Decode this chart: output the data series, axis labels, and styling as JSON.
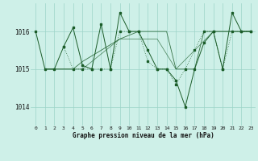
{
  "title": "Graphe pression niveau de la mer (hPa)",
  "background_color": "#cef0e8",
  "grid_color": "#9dd4c8",
  "line_color": "#1a5c28",
  "ylim": [
    1013.5,
    1016.75
  ],
  "xlim": [
    -0.5,
    23.5
  ],
  "yticks": [
    1014,
    1015,
    1016
  ],
  "xticks": [
    0,
    1,
    2,
    3,
    4,
    5,
    6,
    7,
    8,
    9,
    10,
    11,
    12,
    13,
    14,
    15,
    16,
    17,
    18,
    19,
    20,
    21,
    22,
    23
  ],
  "line1": {
    "points": [
      [
        0,
        1016.0
      ],
      [
        1,
        1015.0
      ],
      [
        2,
        1015.0
      ],
      [
        3,
        1015.6
      ],
      [
        4,
        1016.1
      ],
      [
        5,
        1015.1
      ],
      [
        6,
        1015.0
      ],
      [
        7,
        1016.2
      ],
      [
        8,
        1015.0
      ],
      [
        9,
        1016.5
      ],
      [
        10,
        1016.0
      ],
      [
        11,
        1016.0
      ],
      [
        12,
        1015.5
      ],
      [
        13,
        1015.0
      ],
      [
        14,
        1015.0
      ],
      [
        15,
        1014.7
      ],
      [
        16,
        1014.0
      ],
      [
        17,
        1015.0
      ],
      [
        18,
        1015.7
      ],
      [
        19,
        1016.0
      ],
      [
        20,
        1015.0
      ],
      [
        21,
        1016.5
      ],
      [
        22,
        1016.0
      ],
      [
        23,
        1016.0
      ]
    ],
    "style": "solid",
    "marker": true
  },
  "line2": {
    "points": [
      [
        1,
        1015.0
      ],
      [
        2,
        1015.0
      ],
      [
        3,
        1015.0
      ],
      [
        4,
        1015.0
      ],
      [
        5,
        1015.2
      ],
      [
        6,
        1015.35
      ],
      [
        7,
        1015.5
      ],
      [
        8,
        1015.65
      ],
      [
        9,
        1015.8
      ],
      [
        10,
        1015.9
      ],
      [
        11,
        1016.0
      ],
      [
        12,
        1016.0
      ],
      [
        13,
        1016.0
      ],
      [
        14,
        1016.0
      ],
      [
        15,
        1015.0
      ],
      [
        16,
        1015.0
      ],
      [
        17,
        1015.0
      ],
      [
        18,
        1016.0
      ],
      [
        19,
        1016.0
      ],
      [
        20,
        1016.0
      ],
      [
        21,
        1016.0
      ],
      [
        22,
        1016.0
      ],
      [
        23,
        1016.0
      ]
    ],
    "style": "solid",
    "marker": false
  },
  "line3": {
    "points": [
      [
        3,
        1015.6
      ],
      [
        4,
        1015.0
      ],
      [
        5,
        1015.0
      ],
      [
        6,
        1015.0
      ],
      [
        7,
        1015.0
      ],
      [
        8,
        1015.0
      ],
      [
        9,
        1016.0
      ],
      [
        10,
        1016.0
      ],
      [
        11,
        1016.0
      ],
      [
        12,
        1015.2
      ],
      [
        13,
        1015.0
      ],
      [
        14,
        1015.0
      ],
      [
        15,
        1014.6
      ],
      [
        16,
        1015.0
      ],
      [
        17,
        1015.5
      ],
      [
        18,
        1016.0
      ],
      [
        19,
        1016.0
      ],
      [
        20,
        1015.0
      ],
      [
        21,
        1016.0
      ],
      [
        22,
        1016.0
      ],
      [
        23,
        1016.0
      ]
    ],
    "style": "dotted",
    "marker": true
  },
  "line4": {
    "points": [
      [
        1,
        1015.0
      ],
      [
        5,
        1015.0
      ],
      [
        9,
        1015.8
      ],
      [
        13,
        1015.8
      ],
      [
        15,
        1015.0
      ],
      [
        19,
        1016.0
      ],
      [
        23,
        1016.0
      ]
    ],
    "style": "solid",
    "marker": false
  }
}
